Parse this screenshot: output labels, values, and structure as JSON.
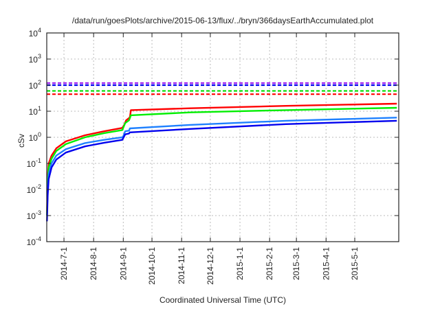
{
  "chart_data": {
    "type": "line",
    "title": "/data/run/goesPlots/archive/2015-06-13/flux/../bryn/366daysEarthAccumulated.plot",
    "xlabel": "Coordinated Universal Time (UTC)",
    "ylabel": "cSv",
    "yscale": "log",
    "ylim": [
      0.0001,
      10000
    ],
    "y_ticks": [
      {
        "base": "10",
        "exp": "-4"
      },
      {
        "base": "10",
        "exp": "-3"
      },
      {
        "base": "10",
        "exp": "-2"
      },
      {
        "base": "10",
        "exp": "-1"
      },
      {
        "base": "10",
        "exp": "0"
      },
      {
        "base": "10",
        "exp": "1"
      },
      {
        "base": "10",
        "exp": "2"
      },
      {
        "base": "10",
        "exp": "3"
      },
      {
        "base": "10",
        "exp": "4"
      }
    ],
    "x_unit": "days since 2014-06-13",
    "xlim": [
      0,
      368
    ],
    "x_ticks": [
      {
        "label": "2014-7-1",
        "day": 18
      },
      {
        "label": "2014-8-1",
        "day": 49
      },
      {
        "label": "2014-9-1",
        "day": 80
      },
      {
        "label": "2014-10-1",
        "day": 110
      },
      {
        "label": "2014-11-1",
        "day": 141
      },
      {
        "label": "2014-12-1",
        "day": 171
      },
      {
        "label": "2015-1-1",
        "day": 202
      },
      {
        "label": "2015-2-1",
        "day": 233
      },
      {
        "label": "2015-3-1",
        "day": 261
      },
      {
        "label": "2015-4-1",
        "day": 292
      },
      {
        "label": "2015-5-1",
        "day": 322
      }
    ],
    "grid": true,
    "thresholds": [
      {
        "color": "#a020f0",
        "value": 120
      },
      {
        "color": "#0000ee",
        "value": 100
      },
      {
        "color": "#00dd00",
        "value": 60
      },
      {
        "color": "#ff0000",
        "value": 45
      }
    ],
    "series": [
      {
        "color": "#ff0000",
        "points": [
          [
            0.2,
            0.001
          ],
          [
            1,
            0.03
          ],
          [
            2,
            0.1
          ],
          [
            5,
            0.2
          ],
          [
            10,
            0.38
          ],
          [
            20,
            0.7
          ],
          [
            40,
            1.2
          ],
          [
            60,
            1.7
          ],
          [
            79,
            2.3
          ],
          [
            81,
            3
          ],
          [
            83,
            4.5
          ],
          [
            86,
            5.5
          ],
          [
            87,
            6
          ],
          [
            88,
            11
          ],
          [
            150,
            13
          ],
          [
            250,
            16
          ],
          [
            366,
            19.5
          ]
        ]
      },
      {
        "color": "#00ee00",
        "points": [
          [
            0.2,
            0.001
          ],
          [
            1,
            0.02
          ],
          [
            2,
            0.07
          ],
          [
            5,
            0.15
          ],
          [
            10,
            0.3
          ],
          [
            20,
            0.55
          ],
          [
            40,
            1.0
          ],
          [
            60,
            1.45
          ],
          [
            79,
            1.9
          ],
          [
            82,
            3.5
          ],
          [
            86,
            4.5
          ],
          [
            88,
            7
          ],
          [
            150,
            9
          ],
          [
            250,
            11
          ],
          [
            366,
            13.5
          ]
        ]
      },
      {
        "color": "#1e80ff",
        "points": [
          [
            0.2,
            0.001
          ],
          [
            1,
            0.01
          ],
          [
            2,
            0.04
          ],
          [
            5,
            0.1
          ],
          [
            10,
            0.2
          ],
          [
            20,
            0.35
          ],
          [
            40,
            0.6
          ],
          [
            60,
            0.8
          ],
          [
            79,
            1.0
          ],
          [
            80,
            1.1
          ],
          [
            82,
            1.7
          ],
          [
            86,
            1.8
          ],
          [
            87,
            2.2
          ],
          [
            150,
            3
          ],
          [
            250,
            4.3
          ],
          [
            366,
            5.7
          ]
        ]
      },
      {
        "color": "#0000ee",
        "points": [
          [
            0.2,
            0.0006
          ],
          [
            1,
            0.006
          ],
          [
            2,
            0.025
          ],
          [
            5,
            0.07
          ],
          [
            10,
            0.14
          ],
          [
            20,
            0.26
          ],
          [
            40,
            0.45
          ],
          [
            60,
            0.62
          ],
          [
            79,
            0.8
          ],
          [
            82,
            1.3
          ],
          [
            86,
            1.4
          ],
          [
            87,
            1.55
          ],
          [
            150,
            2.1
          ],
          [
            250,
            3.2
          ],
          [
            366,
            4.3
          ]
        ]
      }
    ]
  }
}
